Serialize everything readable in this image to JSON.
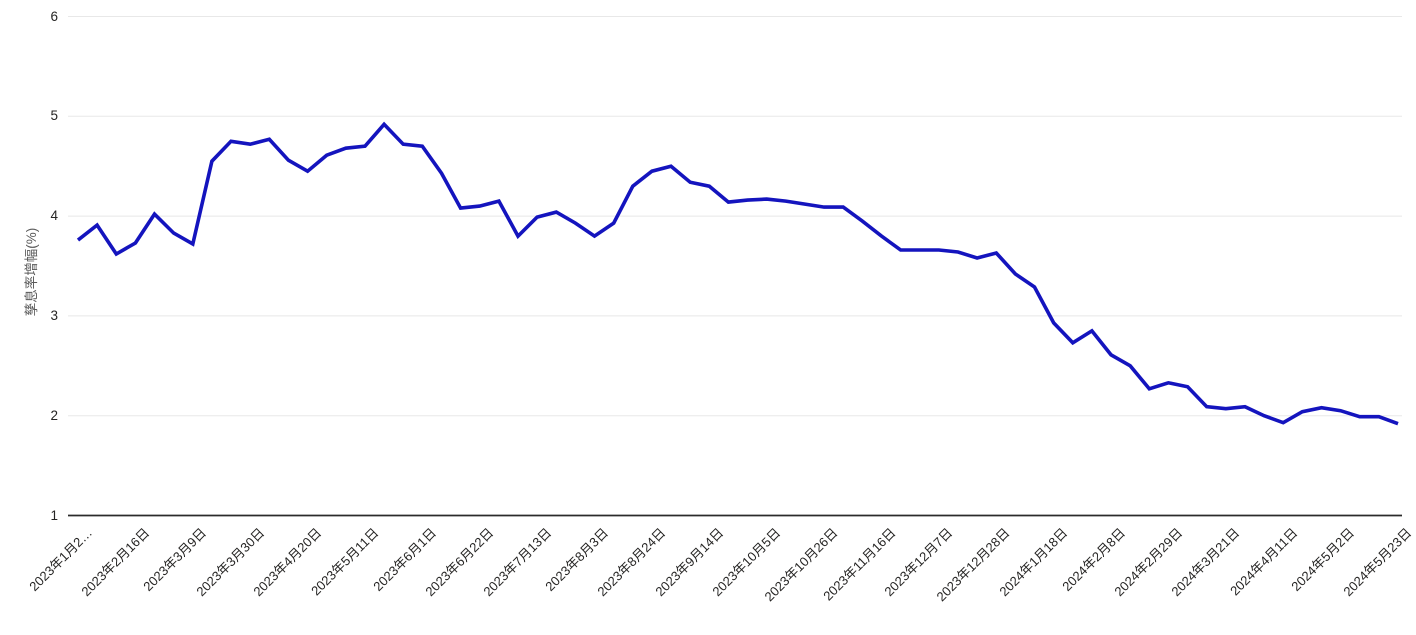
{
  "chart_data": {
    "type": "line",
    "title": "",
    "xlabel": "",
    "ylabel": "孳息率增幅(%)",
    "ylim": [
      1,
      6
    ],
    "yticks": [
      "1",
      "2",
      "3",
      "4",
      "5",
      "6"
    ],
    "grid": "horizontal",
    "legend": "none",
    "tick_every": 3,
    "x_tick_labels": [
      "2023年1月2…",
      "2023年2月16日",
      "2023年3月9日",
      "2023年3月30日",
      "2023年4月20日",
      "2023年5月11日",
      "2023年6月1日",
      "2023年6月22日",
      "2023年7月13日",
      "2023年8月3日",
      "2023年8月24日",
      "2023年9月14日",
      "2023年10月5日",
      "2023年10月26日",
      "2023年11月16日",
      "2023年12月7日",
      "2023年12月28日",
      "2024年1月18日",
      "2024年2月8日",
      "2024年2月29日",
      "2024年3月21日",
      "2024年4月11日",
      "2024年5月2日",
      "2024年5月23日"
    ],
    "series": [
      {
        "name": "孳息率增幅",
        "values": [
          3.76,
          3.91,
          3.62,
          3.73,
          4.02,
          3.83,
          3.72,
          4.55,
          4.75,
          4.72,
          4.77,
          4.56,
          4.45,
          4.61,
          4.68,
          4.7,
          4.92,
          4.72,
          4.7,
          4.43,
          4.08,
          4.1,
          4.15,
          3.8,
          3.99,
          4.04,
          3.93,
          3.8,
          3.93,
          4.3,
          4.45,
          4.5,
          4.34,
          4.3,
          4.14,
          4.16,
          4.17,
          4.15,
          4.12,
          4.09,
          4.09,
          3.95,
          3.8,
          3.66,
          3.66,
          3.66,
          3.64,
          3.58,
          3.63,
          3.42,
          3.29,
          2.93,
          2.73,
          2.85,
          2.61,
          2.5,
          2.27,
          2.33,
          2.29,
          2.09,
          2.07,
          2.09,
          2.0,
          1.93,
          2.04,
          2.08,
          2.05,
          1.99,
          1.99,
          1.92
        ]
      }
    ],
    "colors": {
      "line": "#1414be",
      "grid": "#e8e8e8",
      "axis": "#2b2b2b",
      "tick_label": "#252423",
      "axis_title": "#595959",
      "background": "#ffffff"
    }
  }
}
